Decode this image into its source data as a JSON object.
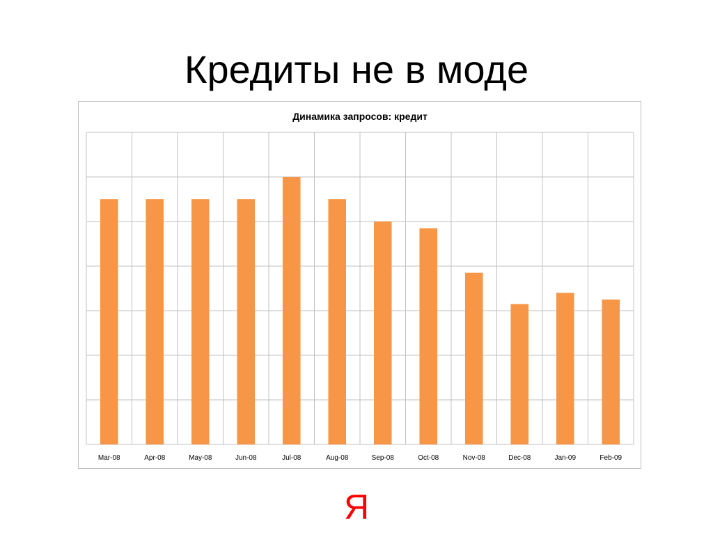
{
  "slide": {
    "title": "Кредиты не в моде",
    "logo_text": "Я"
  },
  "colors": {
    "bar": "#f79646",
    "grid": "#c0c0c0",
    "logo": "#ff0000"
  },
  "chart_data": {
    "type": "bar",
    "title": "Динамика запросов: кредит",
    "xlabel": "",
    "ylabel": "",
    "categories": [
      "Mar-08",
      "Apr-08",
      "May-08",
      "Jun-08",
      "Jul-08",
      "Aug-08",
      "Sep-08",
      "Oct-08",
      "Nov-08",
      "Dec-08",
      "Jan-09",
      "Feb-09"
    ],
    "values": [
      5.5,
      5.5,
      5.5,
      5.5,
      6.0,
      5.5,
      5.0,
      4.85,
      3.85,
      3.15,
      3.4,
      3.25
    ],
    "ylim": [
      0,
      7
    ],
    "y_gridlines": 7,
    "grid": true,
    "y_tick_labels": false,
    "legend": "none"
  }
}
